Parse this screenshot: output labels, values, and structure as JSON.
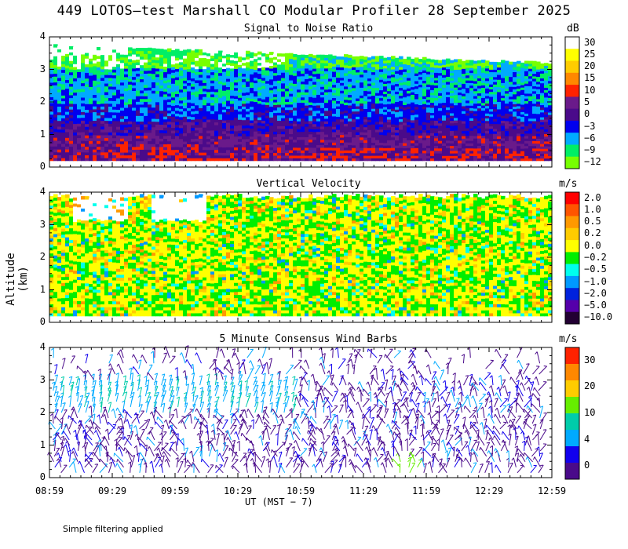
{
  "page_title": "449 LOTOS—test Marshall CO Modular Profiler 28 September 2025",
  "y_axis_title": "Altitude (km)",
  "x_axis_title": "UT  (MST − 7)",
  "footnote": "Simple filtering applied",
  "chart_data": [
    {
      "type": "heatmap",
      "title": "Signal to Noise Ratio",
      "unit": "dB",
      "x": [
        "08:59",
        "09:29",
        "09:59",
        "10:29",
        "10:59",
        "11:29",
        "11:59",
        "12:29",
        "12:59"
      ],
      "ylim": [
        0,
        4
      ],
      "yticks": [
        "0",
        "1",
        "2",
        "3",
        "4"
      ],
      "colorbar": {
        "labels": [
          "30",
          "25",
          "20",
          "15",
          "10",
          "5",
          "0",
          "−3",
          "−6",
          "−9",
          "−12"
        ],
        "colors": [
          "#ffffff",
          "#ffff00",
          "#ffcc00",
          "#ff8800",
          "#ff2200",
          "#6a1a8a",
          "#4a0a8a",
          "#0000ee",
          "#00aaff",
          "#00ee66",
          "#77ff00"
        ]
      },
      "bands": [
        {
          "range_km": [
            0.2,
            0.9
          ],
          "snr_db": 10,
          "desc": "red layer near surface"
        },
        {
          "range_km": [
            0.9,
            1.5
          ],
          "snr_db": 3,
          "desc": "purple"
        },
        {
          "range_km": [
            1.5,
            2.3
          ],
          "snr_db": -3,
          "desc": "blue"
        },
        {
          "range_km": [
            2.3,
            3.2
          ],
          "snr_db": -6,
          "desc": "cyan/green"
        },
        {
          "range_km": [
            3.2,
            4.0
          ],
          "snr_db": 25,
          "desc": "white/yellow patches upper"
        }
      ]
    },
    {
      "type": "heatmap",
      "title": "Vertical Velocity",
      "unit": "m/s",
      "x": [
        "08:59",
        "09:29",
        "09:59",
        "10:29",
        "10:59",
        "11:29",
        "11:59",
        "12:29",
        "12:59"
      ],
      "ylim": [
        0,
        4
      ],
      "yticks": [
        "0",
        "1",
        "2",
        "3",
        "4"
      ],
      "colorbar": {
        "labels": [
          "2.0",
          "1.0",
          "0.5",
          "0.2",
          "0.0",
          "−0.2",
          "−0.5",
          "−1.0",
          "−2.0",
          "−5.0",
          "−10.0"
        ],
        "colors": [
          "#ff0000",
          "#ff5500",
          "#ff9900",
          "#ffcc00",
          "#ffff00",
          "#00ee00",
          "#00ffee",
          "#0099ff",
          "#0022dd",
          "#5500aa",
          "#220033"
        ]
      }
    },
    {
      "type": "scatter",
      "title": "5 Minute Consensus Wind Barbs",
      "unit": "m/s",
      "x": [
        "08:59",
        "09:29",
        "09:59",
        "10:29",
        "10:59",
        "11:29",
        "11:59",
        "12:29",
        "12:59"
      ],
      "ylim": [
        0,
        4
      ],
      "yticks": [
        "0",
        "1",
        "2",
        "3",
        "4"
      ],
      "colorbar": {
        "labels": [
          "30",
          "20",
          "10",
          "4",
          "0"
        ],
        "colors": [
          "#ff2200",
          "#ff8800",
          "#ffcc00",
          "#66ee00",
          "#00ccaa",
          "#00aaff",
          "#1100ee",
          "#4a0a8a"
        ]
      }
    }
  ]
}
